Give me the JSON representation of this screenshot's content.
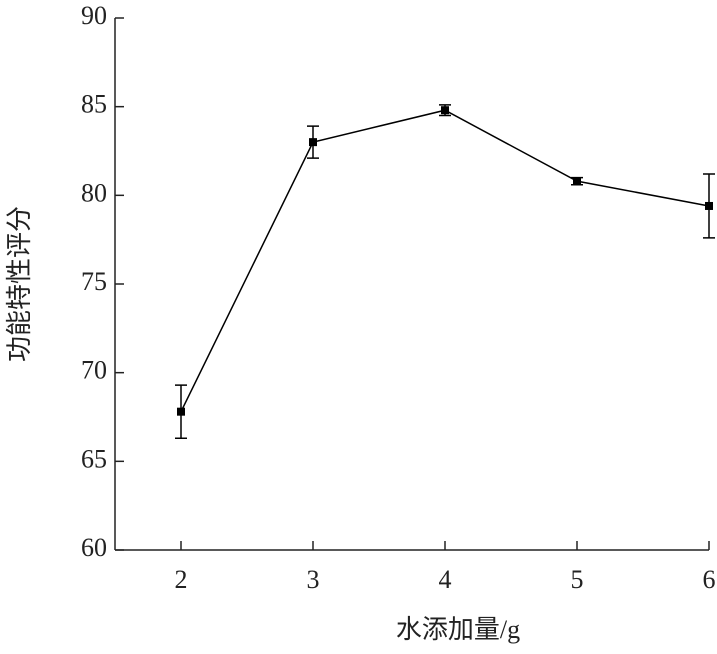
{
  "chart_data": {
    "type": "line",
    "x_label": "水添加量/g",
    "y_label": "功能特性评分",
    "x": [
      2,
      3,
      4,
      5,
      6
    ],
    "series": [
      {
        "color": "#000000",
        "values": [
          67.8,
          83.0,
          84.8,
          80.8,
          79.4
        ],
        "errors": [
          1.5,
          0.9,
          0.3,
          0.2,
          1.8
        ]
      }
    ],
    "xlim": [
      1.5,
      6
    ],
    "xticks": [
      2,
      3,
      4,
      5,
      6
    ],
    "ylim": [
      60,
      90
    ],
    "yticks": [
      60,
      65,
      70,
      75,
      80,
      85,
      90
    ],
    "grid": false
  }
}
